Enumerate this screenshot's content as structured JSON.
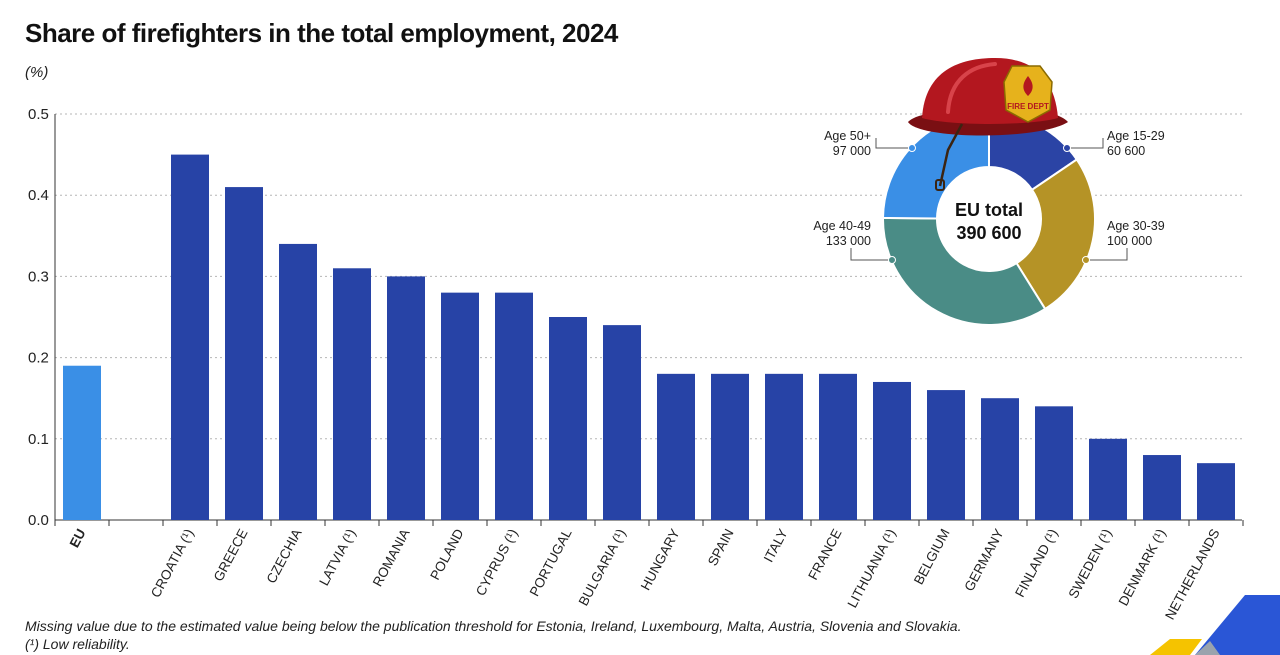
{
  "title": "Share of firefighters in the total employment, 2024",
  "unit": "(%)",
  "chart_data": {
    "type": "bar",
    "title": "Share of firefighters in the total employment, 2024",
    "ylabel": "(%)",
    "ylim": [
      0,
      0.5
    ],
    "yticks": [
      "0.0",
      "0.1",
      "0.2",
      "0.3",
      "0.4",
      "0.5"
    ],
    "grid": true,
    "categories": [
      "EU",
      "CROATIA (¹)",
      "GREECE",
      "CZECHIA",
      "LATVIA (¹)",
      "ROMANIA",
      "POLAND",
      "CYPRUS (¹)",
      "PORTUGAL",
      "BULGARIA (¹)",
      "HUNGARY",
      "SPAIN",
      "ITALY",
      "FRANCE",
      "LITHUANIA (¹)",
      "BELGIUM",
      "GERMANY",
      "FINLAND (¹)",
      "SWEDEN (¹)",
      "DENMARK (¹)",
      "NETHERLANDS"
    ],
    "values": [
      0.19,
      0.45,
      0.41,
      0.34,
      0.31,
      0.3,
      0.28,
      0.28,
      0.25,
      0.24,
      0.18,
      0.18,
      0.18,
      0.18,
      0.17,
      0.16,
      0.15,
      0.14,
      0.1,
      0.08,
      0.07
    ],
    "colors": {
      "eu": "#3a8fe6",
      "country": "#2743a6"
    }
  },
  "donut": {
    "center_label": "EU total",
    "center_value": "390 600",
    "segments": [
      {
        "label": "Age 15-29",
        "value": 60600,
        "value_text": "60 600",
        "color": "#2b44a5"
      },
      {
        "label": "Age 30-39",
        "value": 100000,
        "value_text": "100 000",
        "color": "#b59326"
      },
      {
        "label": "Age 40-49",
        "value": 133000,
        "value_text": "133 000",
        "color": "#4a8c86"
      },
      {
        "label": "Age 50+",
        "value": 97000,
        "value_text": "97 000",
        "color": "#3a8fe6"
      }
    ]
  },
  "helmet": {
    "badge_text": "FIRE DEPT"
  },
  "footnotes": {
    "missing": "Missing value due to the estimated value being below the publication threshold for Estonia, Ireland, Luxembourg, Malta, Austria, Slovenia and Slovakia.",
    "low_reliability": "(¹) Low reliability."
  }
}
